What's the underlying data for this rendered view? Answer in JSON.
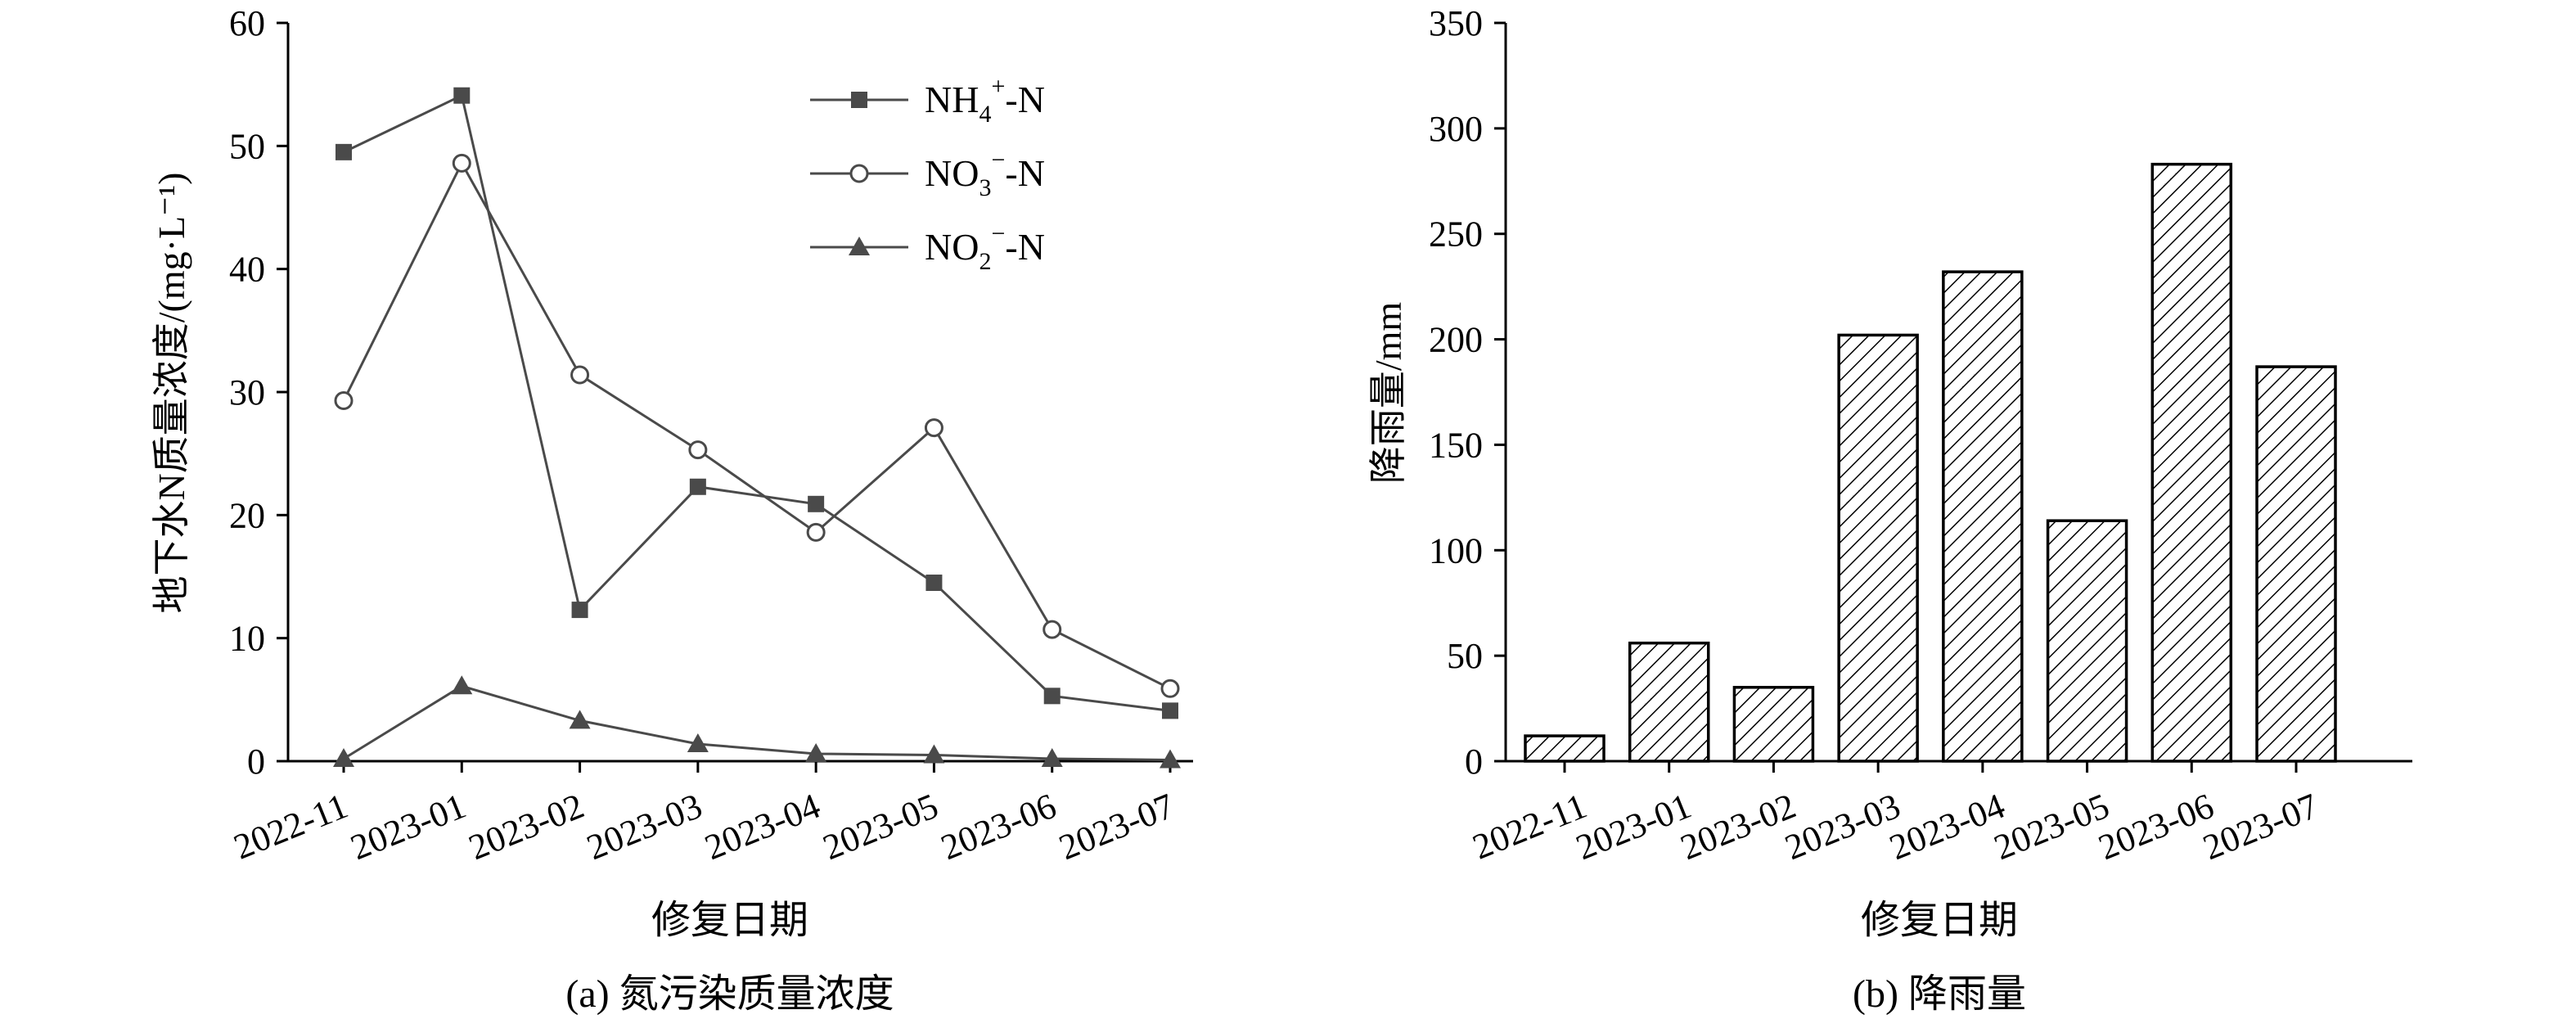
{
  "chart_data": [
    {
      "type": "line",
      "categories": [
        "2022-11",
        "2023-01",
        "2023-02",
        "2023-03",
        "2023-04",
        "2023-05",
        "2023-06",
        "2023-07"
      ],
      "ylabel": "地下水N质量浓度/(mg·L⁻¹)",
      "xlabel": "修复日期",
      "caption": "(a) 氮污染质量浓度",
      "ylim": [
        0,
        60
      ],
      "yticks": [
        0,
        10,
        20,
        30,
        40,
        50,
        60
      ],
      "grid": false,
      "legend_position": "top-right",
      "series": [
        {
          "name": "NH4+-N",
          "base": "NH",
          "sub": "4",
          "sup": "+",
          "tail": "-N",
          "marker": "square",
          "values": [
            49.5,
            54.1,
            12.3,
            22.3,
            20.9,
            14.5,
            5.3,
            4.1
          ]
        },
        {
          "name": "NO3−-N",
          "base": "NO",
          "sub": "3",
          "sup": "−",
          "tail": "-N",
          "marker": "circle",
          "values": [
            29.3,
            48.6,
            31.4,
            25.3,
            18.6,
            27.1,
            10.7,
            5.9
          ]
        },
        {
          "name": "NO2−-N",
          "base": "NO",
          "sub": "2",
          "sup": "−",
          "tail": "-N",
          "marker": "triangle",
          "values": [
            0.2,
            6.1,
            3.3,
            1.4,
            0.6,
            0.5,
            0.2,
            0.1
          ]
        }
      ]
    },
    {
      "type": "bar",
      "categories": [
        "2022-11",
        "2023-01",
        "2023-02",
        "2023-03",
        "2023-04",
        "2023-05",
        "2023-06",
        "2023-07"
      ],
      "values": [
        12,
        56,
        35,
        202,
        232,
        114,
        283,
        187
      ],
      "ylabel": "降雨量/mm",
      "xlabel": "修复日期",
      "caption": "(b) 降雨量",
      "ylim": [
        0,
        350
      ],
      "yticks": [
        0,
        50,
        100,
        150,
        200,
        250,
        300,
        350
      ],
      "grid": false,
      "bar_pattern": "diagonal-hatch"
    }
  ]
}
